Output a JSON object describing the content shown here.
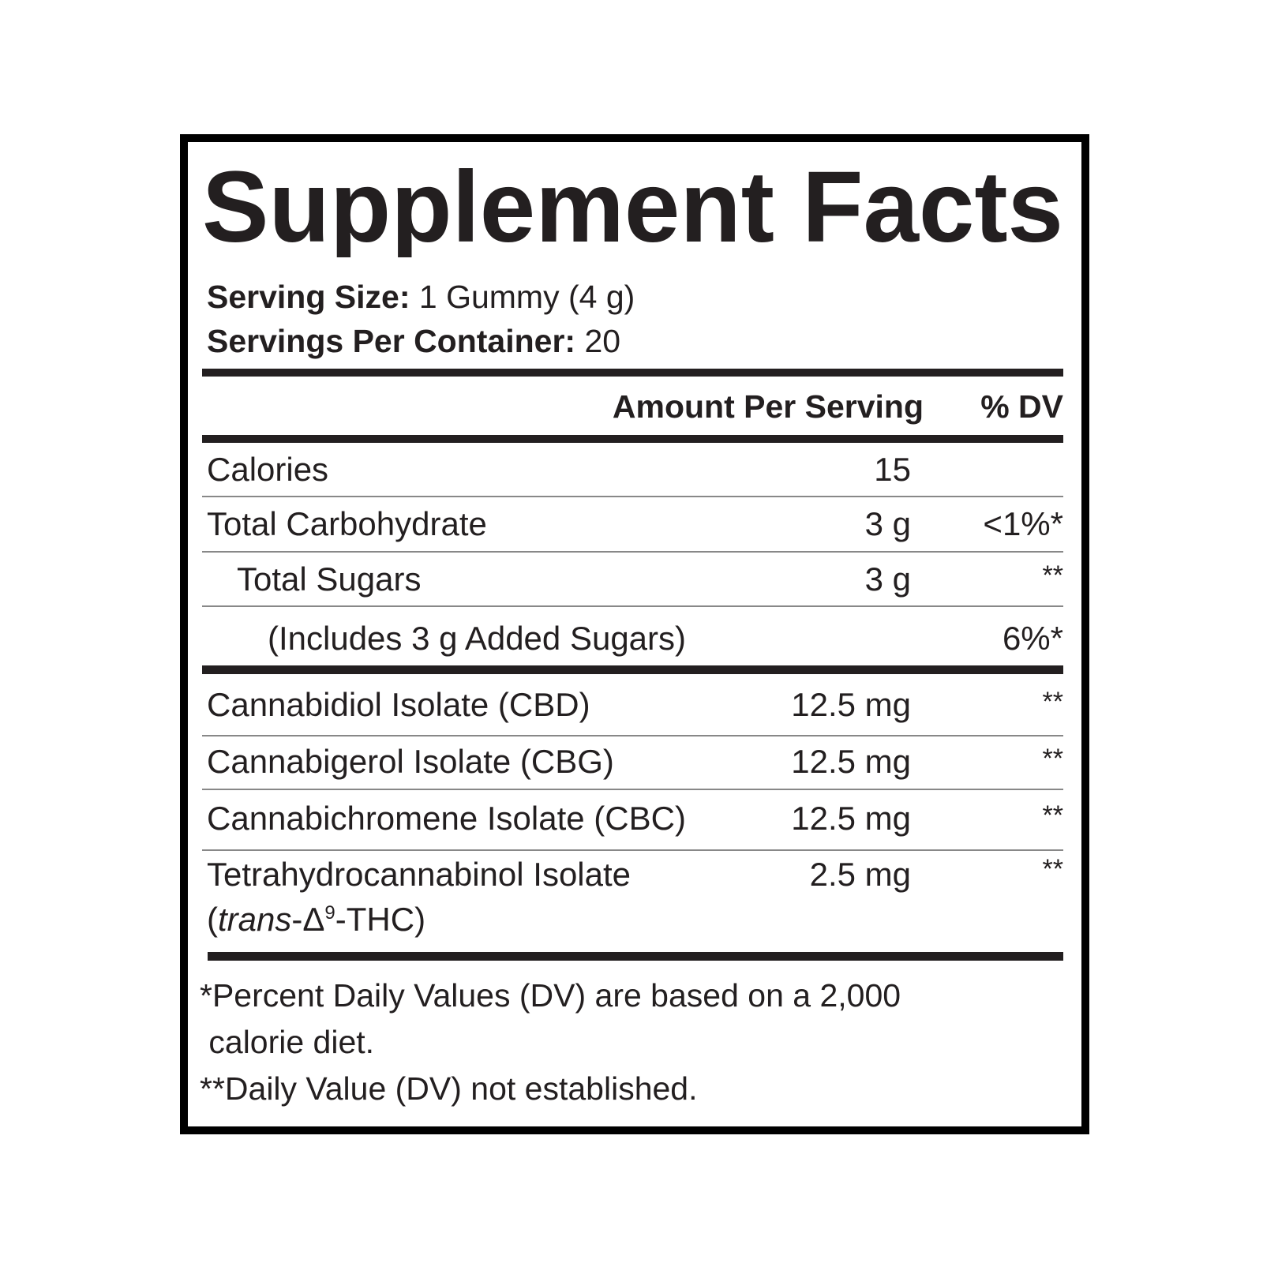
{
  "title": "Supplement Facts",
  "serving": {
    "size_label": "Serving Size:",
    "size_value": "1 Gummy (4 g)",
    "per_container_label": "Servings Per Container:",
    "per_container_value": "20"
  },
  "header": {
    "amount": "Amount Per Serving",
    "dv": "% DV"
  },
  "rows": [
    {
      "name": "Calories",
      "amount": "15",
      "dv": ""
    },
    {
      "name": "Total Carbohydrate",
      "amount": "3 g",
      "dv": "<1%*"
    },
    {
      "name": "Total Sugars",
      "amount": "3 g",
      "dv": "**"
    },
    {
      "name": "(Includes 3 g Added Sugars)",
      "amount": "",
      "dv": "6%*"
    },
    {
      "name": "Cannabidiol Isolate (CBD)",
      "amount": "12.5 mg",
      "dv": "**"
    },
    {
      "name": "Cannabigerol Isolate (CBG)",
      "amount": "12.5 mg",
      "dv": "**"
    },
    {
      "name": "Cannabichromene Isolate (CBC)",
      "amount": "12.5 mg",
      "dv": "**"
    },
    {
      "name": "Tetrahydrocannabinol Isolate",
      "name_line2": {
        "open": "(",
        "italic": "trans",
        "mid": "-Δ",
        "sup": "9",
        "close": "-THC)"
      },
      "amount": "2.5 mg",
      "dv": "**"
    }
  ],
  "footnotes": [
    "*Percent Daily Values (DV) are based on a 2,000",
    " calorie diet.",
    "**Daily Value (DV) not established."
  ]
}
